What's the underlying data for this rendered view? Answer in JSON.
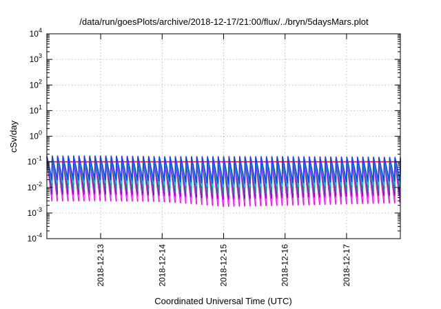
{
  "chart_data": {
    "type": "line",
    "title": "/data/run/goesPlots/archive/2018-12-17/21:00/flux/../bryn/5daysMars.plot",
    "xlabel": "Coordinated Universal Time (UTC)",
    "ylabel": "cSv/day",
    "yscale": "log",
    "ylim": [
      0.0001,
      10000
    ],
    "y_ticks": [
      {
        "base": "10",
        "exp": "4"
      },
      {
        "base": "10",
        "exp": "3"
      },
      {
        "base": "10",
        "exp": "2"
      },
      {
        "base": "10",
        "exp": "1"
      },
      {
        "base": "10",
        "exp": "0"
      },
      {
        "base": "10",
        "exp": "-1"
      },
      {
        "base": "10",
        "exp": "-2"
      },
      {
        "base": "10",
        "exp": "-3"
      },
      {
        "base": "10",
        "exp": "-4"
      }
    ],
    "xlim": [
      "2018-12-12T03:00",
      "2018-12-17T21:00"
    ],
    "x_ticks": [
      "2018-12-13",
      "2018-12-14",
      "2018-12-15",
      "2018-12-16",
      "2018-12-17"
    ],
    "grid": true,
    "legend": "none",
    "sawtooth": {
      "cycles": 66,
      "series": [
        {
          "color": "#ff0000",
          "values": [
            [
              "2018-12-12T03:00",
              0.1
            ],
            [
              "2018-12-13T00:00",
              0.1
            ],
            [
              "2018-12-14T00:00",
              0.1
            ],
            [
              "2018-12-15T00:00",
              0.1
            ],
            [
              "2018-12-16T00:00",
              0.1
            ],
            [
              "2018-12-17T21:00",
              0.1
            ]
          ]
        },
        {
          "color": "#ff00ff",
          "values": [
            [
              "2018-12-12T03:00",
              0.12,
              0.003
            ],
            [
              "2018-12-13T00:00",
              0.12,
              0.003
            ],
            [
              "2018-12-14T00:00",
              0.11,
              0.0028
            ],
            [
              "2018-12-15T00:00",
              0.11,
              0.0018
            ],
            [
              "2018-12-16T00:00",
              0.11,
              0.002
            ],
            [
              "2018-12-17T21:00",
              0.1,
              0.0025
            ]
          ]
        },
        {
          "color": "#ff30ff",
          "values": [
            [
              "2018-12-12T03:00",
              0.1,
              0.004
            ],
            [
              "2018-12-13T00:00",
              0.1,
              0.004
            ],
            [
              "2018-12-14T00:00",
              0.095,
              0.0035
            ],
            [
              "2018-12-15T00:00",
              0.095,
              0.0025
            ],
            [
              "2018-12-16T00:00",
              0.095,
              0.0028
            ],
            [
              "2018-12-17T21:00",
              0.09,
              0.0035
            ]
          ]
        },
        {
          "color": "#9400d3",
          "values": [
            [
              "2018-12-12T03:00",
              0.14,
              0.0055
            ],
            [
              "2018-12-13T00:00",
              0.14,
              0.0055
            ],
            [
              "2018-12-14T00:00",
              0.13,
              0.005
            ],
            [
              "2018-12-15T00:00",
              0.13,
              0.0035
            ],
            [
              "2018-12-16T00:00",
              0.13,
              0.004
            ],
            [
              "2018-12-17T21:00",
              0.12,
              0.005
            ]
          ]
        },
        {
          "color": "#008b8b",
          "values": [
            [
              "2018-12-12T03:00",
              0.15,
              0.008
            ],
            [
              "2018-12-13T00:00",
              0.15,
              0.008
            ],
            [
              "2018-12-14T00:00",
              0.14,
              0.007
            ],
            [
              "2018-12-15T00:00",
              0.14,
              0.005
            ],
            [
              "2018-12-16T00:00",
              0.14,
              0.006
            ],
            [
              "2018-12-17T21:00",
              0.13,
              0.007
            ]
          ]
        },
        {
          "color": "#2e8b57",
          "values": [
            [
              "2018-12-12T03:00",
              0.15,
              0.011
            ],
            [
              "2018-12-13T00:00",
              0.15,
              0.011
            ],
            [
              "2018-12-14T00:00",
              0.14,
              0.01
            ],
            [
              "2018-12-15T00:00",
              0.14,
              0.007
            ],
            [
              "2018-12-16T00:00",
              0.14,
              0.008
            ],
            [
              "2018-12-17T21:00",
              0.13,
              0.01
            ]
          ]
        },
        {
          "color": "#00bfff",
          "values": [
            [
              "2018-12-12T03:00",
              0.16,
              0.015
            ],
            [
              "2018-12-13T00:00",
              0.16,
              0.015
            ],
            [
              "2018-12-14T00:00",
              0.15,
              0.013
            ],
            [
              "2018-12-15T00:00",
              0.15,
              0.01
            ],
            [
              "2018-12-16T00:00",
              0.15,
              0.011
            ],
            [
              "2018-12-17T21:00",
              0.14,
              0.013
            ]
          ]
        },
        {
          "color": "#1e3cff",
          "values": [
            [
              "2018-12-12T03:00",
              0.17,
              0.02
            ],
            [
              "2018-12-13T00:00",
              0.17,
              0.02
            ],
            [
              "2018-12-14T00:00",
              0.16,
              0.018
            ],
            [
              "2018-12-15T00:00",
              0.16,
              0.014
            ],
            [
              "2018-12-16T00:00",
              0.16,
              0.015
            ],
            [
              "2018-12-17T21:00",
              0.15,
              0.018
            ]
          ]
        }
      ]
    }
  }
}
